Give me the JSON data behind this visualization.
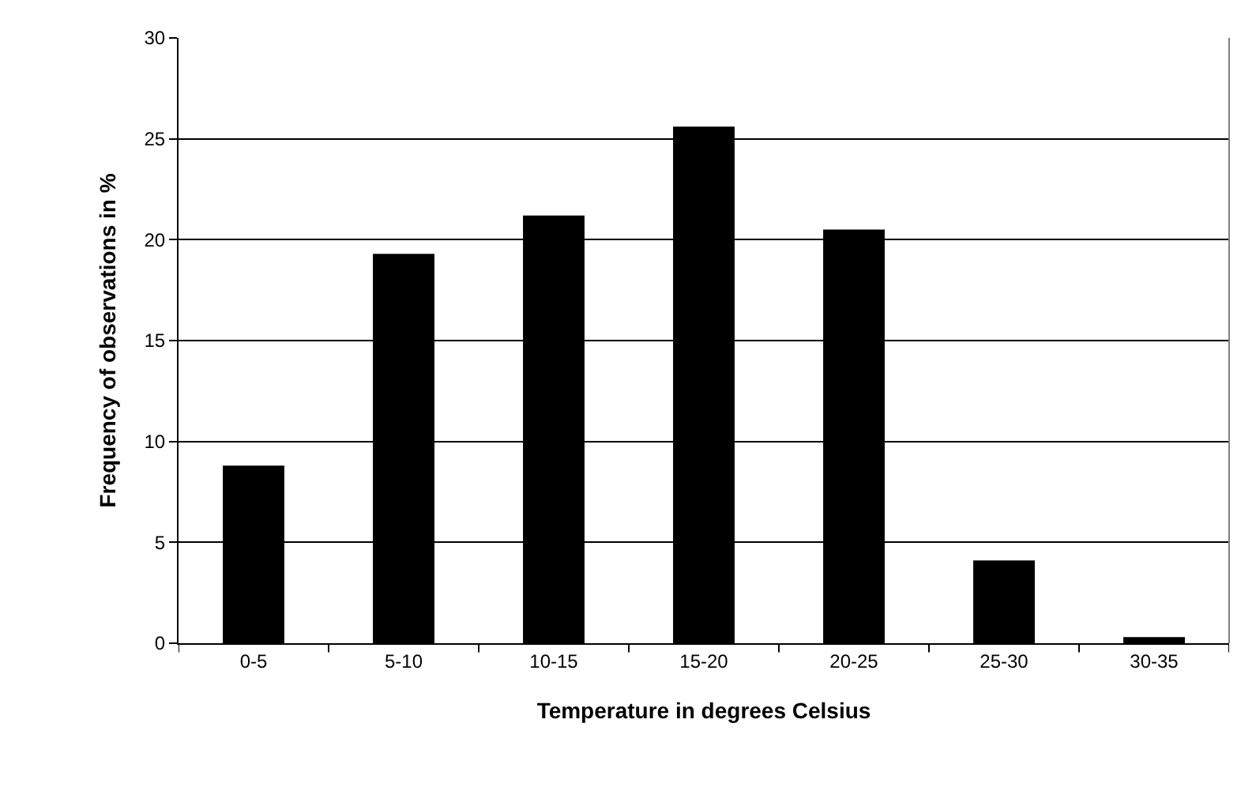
{
  "chart_data": {
    "type": "bar",
    "xlabel": "Temperature in degrees Celsius",
    "ylabel": "Frequency of observations in %",
    "categories": [
      "0-5",
      "5-10",
      "10-15",
      "15-20",
      "20-25",
      "25-30",
      "30-35"
    ],
    "values": [
      8.8,
      19.3,
      21.2,
      25.6,
      20.5,
      4.1,
      0.3
    ],
    "color": "#000000",
    "ylim": [
      0,
      30
    ],
    "yticks": [
      0,
      5,
      10,
      15,
      20,
      25,
      30
    ],
    "grid": "y"
  }
}
